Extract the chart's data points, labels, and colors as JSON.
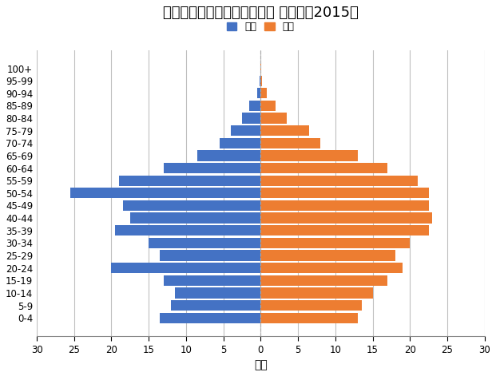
{
  "title": "シンガポール人口ピラミッド グラフ（2015）",
  "xlabel": "万人",
  "legend_male": "男性",
  "legend_female": "女性",
  "age_groups": [
    "0-4",
    "5-9",
    "10-14",
    "15-19",
    "20-24",
    "25-29",
    "30-34",
    "35-39",
    "40-44",
    "45-49",
    "50-54",
    "55-59",
    "60-64",
    "65-69",
    "70-74",
    "75-79",
    "80-84",
    "85-89",
    "90-94",
    "95-99",
    "100+"
  ],
  "male": [
    13.5,
    12.0,
    11.5,
    13.0,
    20.0,
    13.5,
    15.0,
    19.5,
    17.5,
    18.5,
    25.5,
    19.0,
    13.0,
    8.5,
    5.5,
    4.0,
    2.5,
    1.5,
    0.5,
    0.1,
    0.05
  ],
  "female": [
    13.0,
    13.5,
    15.0,
    17.0,
    19.0,
    18.0,
    20.0,
    22.5,
    23.0,
    22.5,
    22.5,
    21.0,
    17.0,
    13.0,
    8.0,
    6.5,
    3.5,
    2.0,
    0.8,
    0.2,
    0.1
  ],
  "male_color": "#4472c4",
  "female_color": "#ed7d31",
  "xlim": 30,
  "background_color": "#ffffff",
  "grid_color": "#bfbfbf",
  "title_fontsize": 13,
  "axis_fontsize": 10,
  "tick_fontsize": 8.5
}
